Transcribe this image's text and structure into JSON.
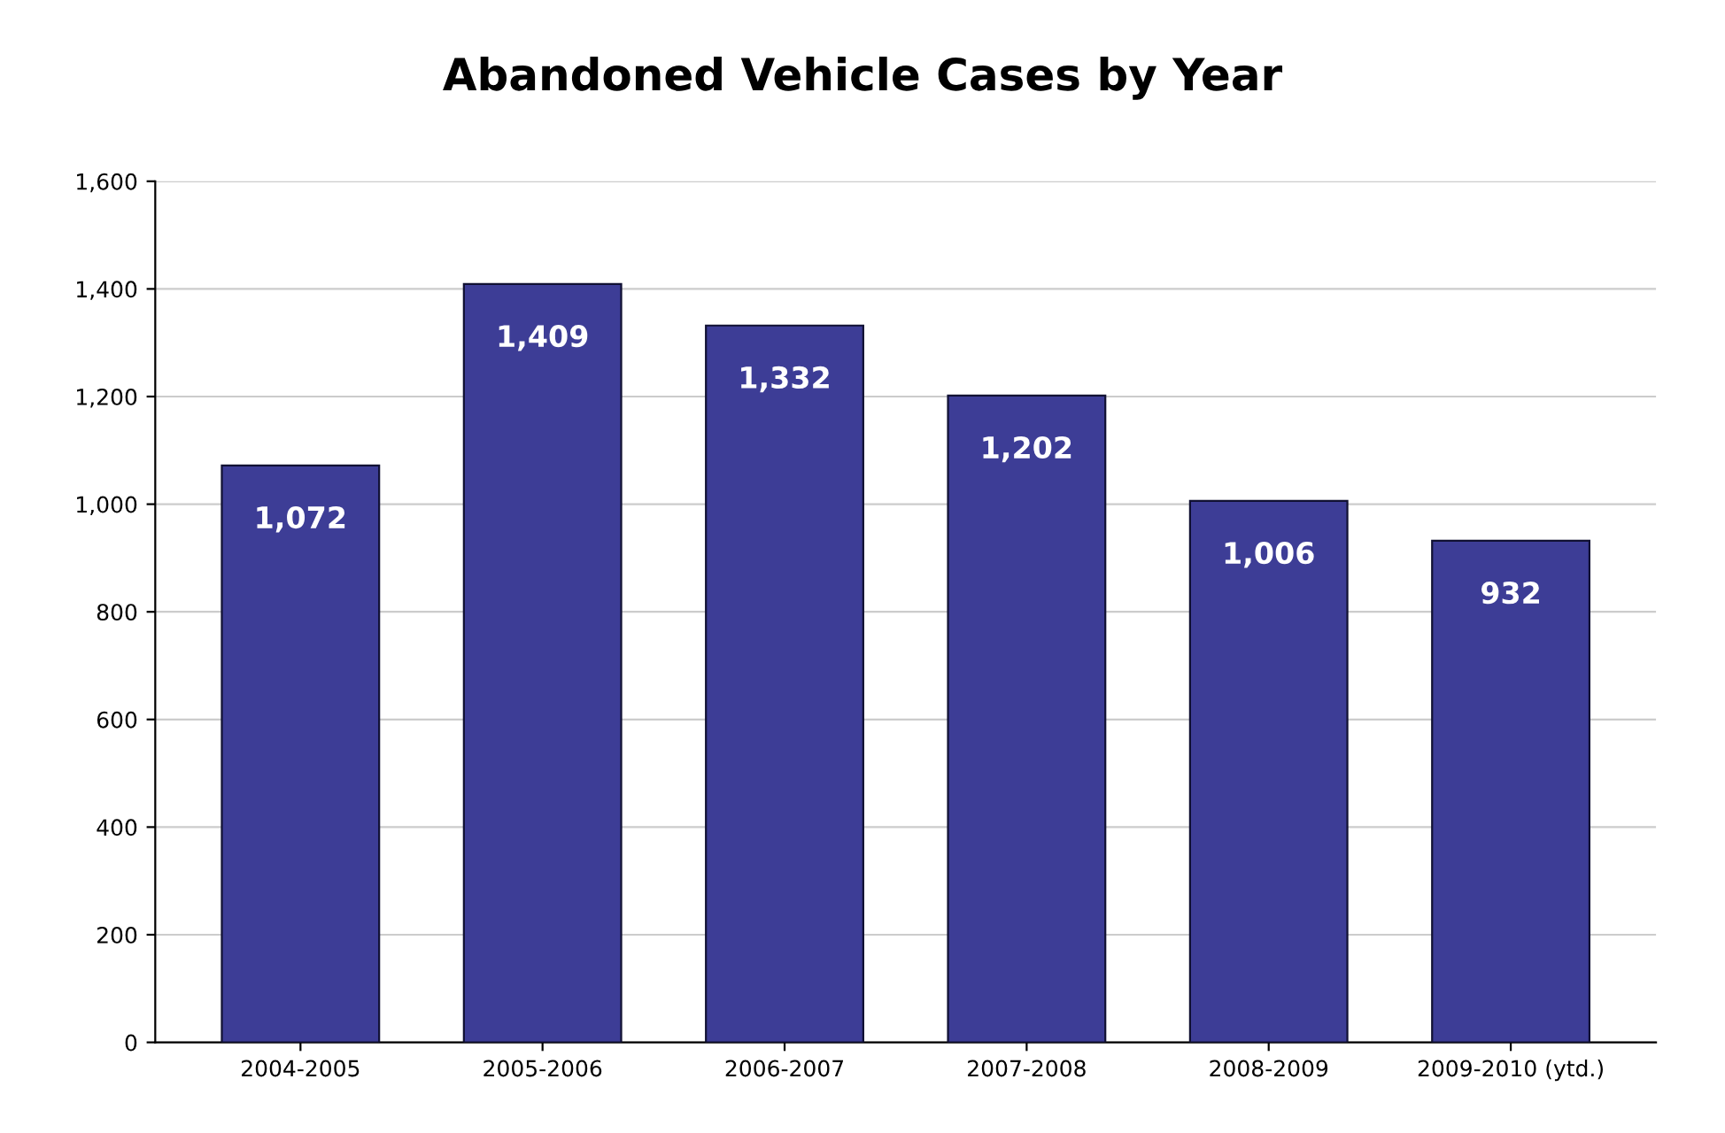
{
  "chart_data": {
    "type": "bar",
    "title": "Abandoned Vehicle Cases by Year",
    "categories": [
      "2004-2005",
      "2005-2006",
      "2006-2007",
      "2007-2008",
      "2008-2009",
      "2009-2010 (ytd.)"
    ],
    "values": [
      1072,
      1409,
      1332,
      1202,
      1006,
      932
    ],
    "value_labels": [
      "1,072",
      "1,409",
      "1,332",
      "1,202",
      "1,006",
      "932"
    ],
    "color": "#3d3d96",
    "ylim": [
      0,
      1600
    ],
    "yticks": [
      0,
      200,
      400,
      600,
      800,
      {
        "value": 1000,
        "label": "1,000"
      },
      {
        "value": 1200,
        "label": "1,200"
      },
      {
        "value": 1400,
        "label": "1,400"
      },
      {
        "value": 1600,
        "label": "1,600"
      }
    ],
    "grid": "y"
  }
}
